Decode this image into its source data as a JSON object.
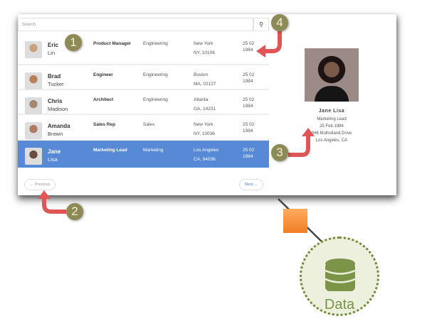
{
  "search": {
    "placeholder": "Search",
    "icon": "search-icon"
  },
  "rows": [
    {
      "first": "Eric",
      "last": "Lin",
      "title": "Product Manager",
      "dept": "Engineering",
      "city": "New York",
      "zip": "NY, 10106",
      "date1": "25 02",
      "date2": "1984",
      "avatar": "#c9a27c"
    },
    {
      "first": "Brad",
      "last": "Tucker",
      "title": "Engineer",
      "dept": "Engineering",
      "city": "Boston",
      "zip": "MA, 02127",
      "date1": "25 02",
      "date2": "1984",
      "avatar": "#b97e5c"
    },
    {
      "first": "Chris",
      "last": "Madison",
      "title": "Architect",
      "dept": "Engineering",
      "city": "Atlanta",
      "zip": "GA, 14231",
      "date1": "25 02",
      "date2": "1984",
      "avatar": "#a48872"
    },
    {
      "first": "Amanda",
      "last": "Brown",
      "title": "Sales Rep",
      "dept": "Sales",
      "city": "New York",
      "zip": "NY, 10036",
      "date1": "25 02",
      "date2": "1984",
      "avatar": "#b07a62"
    },
    {
      "first": "Jane",
      "last": "Lisa",
      "title": "Marketing Lead",
      "dept": "Marketing",
      "city": "Los Angeles",
      "zip": "CA, 94036",
      "date1": "25 02",
      "date2": "1984",
      "avatar": "#6b4c3e",
      "selected": true
    }
  ],
  "pagination": {
    "previous": "← Previous",
    "next": "Next →"
  },
  "detail": {
    "name": "Jane Lisa",
    "title": "Marketing Lead",
    "dob": "25 Feb 1984",
    "address": "346 Mulholland Drive",
    "city": "Los Angeles, CA"
  },
  "badges": [
    "1",
    "2",
    "3",
    "4"
  ],
  "data_label": "Data",
  "colors": {
    "selected": "#568ad6",
    "badge": "#8e8a56",
    "arrow": "#e05555",
    "orange": "#f38a34",
    "data": "#789449"
  }
}
